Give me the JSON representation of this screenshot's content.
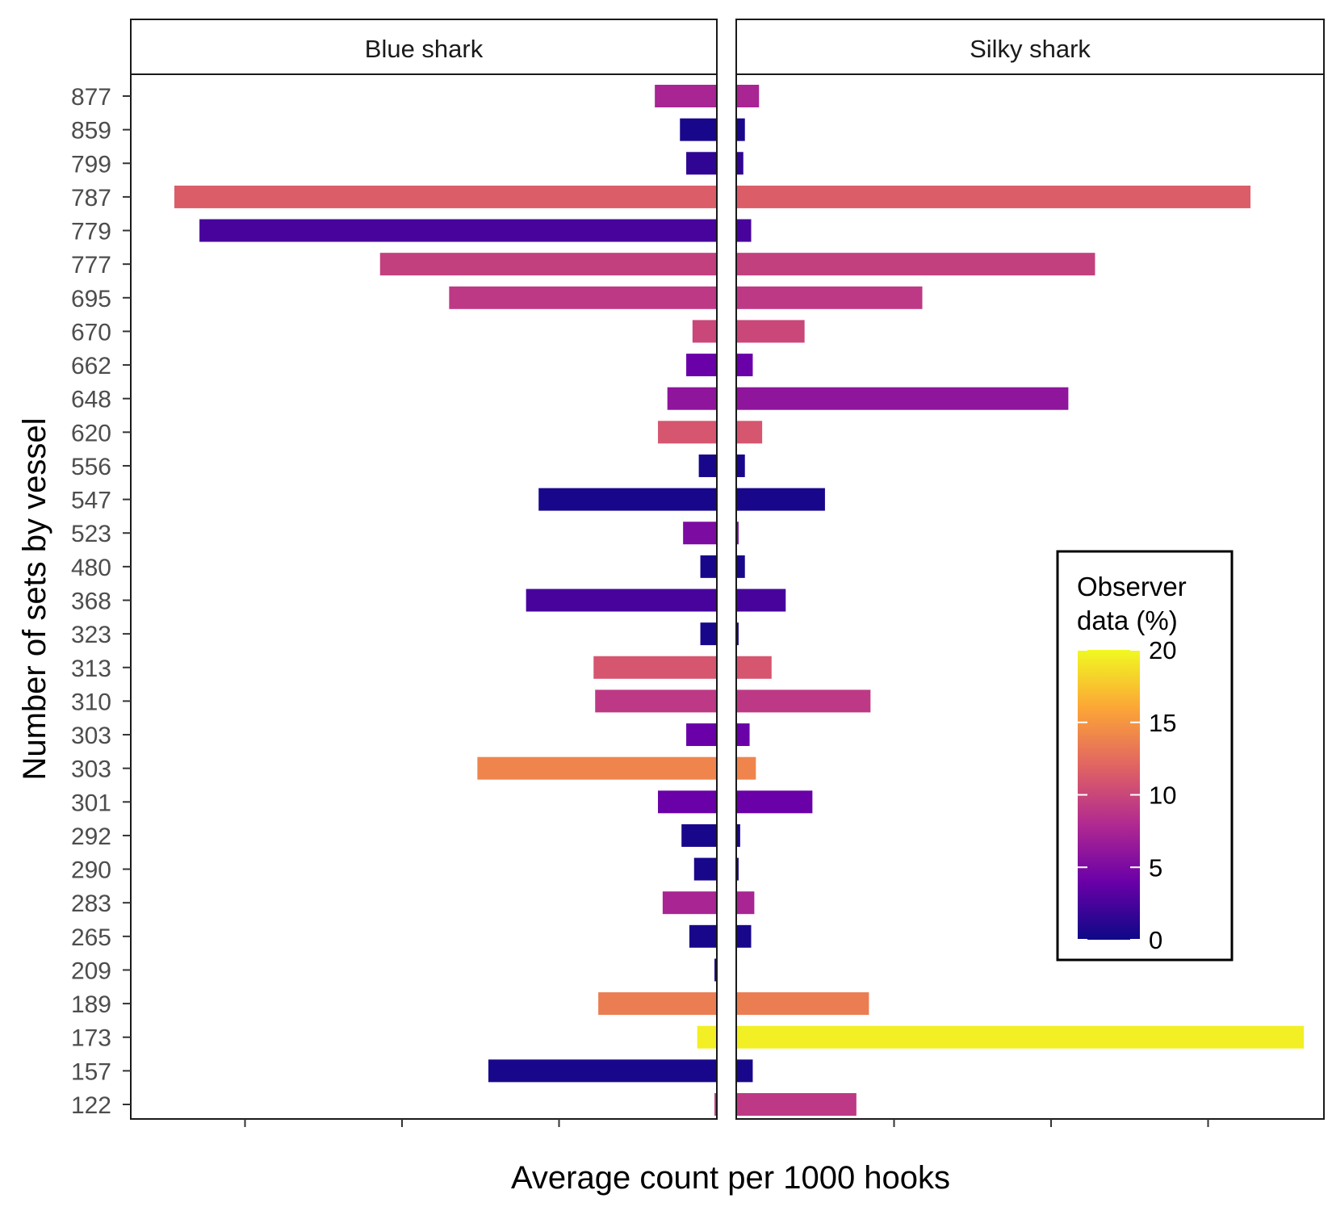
{
  "chart_data": {
    "type": "bar",
    "orientation": "horizontal",
    "ylabel": "Number of sets by vessel",
    "xlabel": "Average count per 1000 hooks",
    "categories": [
      "877",
      "859",
      "799",
      "787",
      "779",
      "777",
      "695",
      "670",
      "662",
      "648",
      "620",
      "556",
      "547",
      "523",
      "480",
      "368",
      "323",
      "313",
      "310",
      "303",
      "303",
      "301",
      "292",
      "290",
      "283",
      "265",
      "209",
      "189",
      "173",
      "157",
      "122"
    ],
    "observer_pct": [
      7.5,
      0.5,
      1.5,
      11.5,
      2.5,
      9.5,
      9.0,
      10.0,
      4.0,
      6.0,
      11.0,
      0.5,
      0.5,
      5.0,
      0.5,
      2.5,
      0.5,
      11.0,
      9.0,
      4.0,
      14.0,
      4.0,
      0.5,
      0.5,
      7.5,
      0.5,
      0.5,
      13.5,
      19.5,
      0.5,
      9.0
    ],
    "panels": [
      {
        "name": "Blue shark",
        "direction": "left",
        "values": [
          0.39,
          0.23,
          0.19,
          3.45,
          3.29,
          2.14,
          1.7,
          0.15,
          0.19,
          0.31,
          0.37,
          0.11,
          1.13,
          0.21,
          0.1,
          1.21,
          0.1,
          0.78,
          0.77,
          0.19,
          1.52,
          0.37,
          0.22,
          0.14,
          0.34,
          0.17,
          0.01,
          0.75,
          0.12,
          1.45,
          0.01
        ]
      },
      {
        "name": "Silky shark",
        "direction": "right",
        "values": [
          0.14,
          0.05,
          0.04,
          3.27,
          0.09,
          2.28,
          1.18,
          0.43,
          0.1,
          2.11,
          0.16,
          0.05,
          0.56,
          0.01,
          0.05,
          0.31,
          0.01,
          0.22,
          0.85,
          0.08,
          0.12,
          0.48,
          0.02,
          0.01,
          0.11,
          0.09,
          0.0,
          0.84,
          3.61,
          0.1,
          0.76
        ]
      }
    ],
    "xlim": [
      0,
      3.7
    ],
    "tick_step": 1,
    "grid": false,
    "legend": {
      "title": [
        "Observer",
        "data (%)"
      ],
      "position": "right",
      "ticks": [
        "0",
        "5",
        "10",
        "15",
        "20"
      ],
      "range": [
        0,
        20
      ],
      "palette": [
        "#0d0887",
        "#6a00a8",
        "#b12a90",
        "#e16462",
        "#fca636",
        "#f0f921"
      ]
    }
  }
}
